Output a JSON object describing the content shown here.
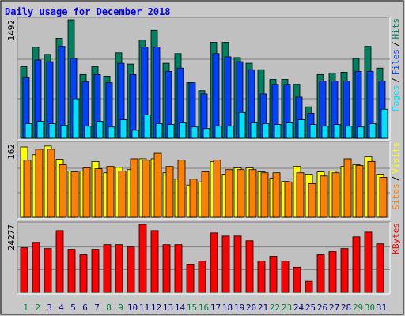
{
  "title": "Daily usage for December 2018",
  "legend_separator": "/",
  "chart_data": [
    {
      "type": "bar",
      "ylim": [
        0,
        1492
      ],
      "yticks": [
        1492
      ],
      "series": [
        {
          "name": "Hits",
          "color": "#008060",
          "values": [
            903,
            1147,
            1056,
            1259,
            1492,
            802,
            903,
            782,
            1076,
            934,
            1238,
            1360,
            944,
            1066,
            700,
            599,
            1208,
            1208,
            1015,
            944,
            863,
            741,
            741,
            680,
            396,
            802,
            822,
            832,
            1005,
            1157,
            883
          ]
        },
        {
          "name": "Files",
          "color": "#0040ff",
          "values": [
            761,
            985,
            964,
            1157,
            1005,
            710,
            802,
            700,
            944,
            802,
            1147,
            1147,
            842,
            883,
            700,
            558,
            1066,
            1025,
            964,
            863,
            558,
            680,
            680,
            518,
            315,
            721,
            721,
            721,
            842,
            842,
            721
          ]
        },
        {
          "name": "Pages",
          "color": "#00e0ff",
          "values": [
            183,
            213,
            183,
            162,
            497,
            152,
            213,
            142,
            233,
            101,
            294,
            183,
            173,
            193,
            142,
            122,
            152,
            152,
            325,
            193,
            183,
            173,
            193,
            233,
            173,
            152,
            173,
            152,
            142,
            183,
            365
          ]
        }
      ]
    },
    {
      "type": "bar",
      "ylim": [
        0,
        162
      ],
      "yticks": [
        162
      ],
      "series": [
        {
          "name": "Visits",
          "color": "#ffff00",
          "values": [
            155,
            138,
            157,
            128,
            102,
            102,
            123,
            98,
            110,
            105,
            129,
            129,
            98,
            84,
            71,
            78,
            123,
            95,
            109,
            109,
            100,
            86,
            79,
            112,
            95,
            100,
            102,
            112,
            116,
            133,
            95
          ]
        },
        {
          "name": "Sites",
          "color": "#ff8000",
          "values": [
            126,
            150,
            150,
            116,
            100,
            109,
            107,
            112,
            102,
            129,
            126,
            141,
            112,
            126,
            84,
            100,
            126,
            105,
            105,
            105,
            98,
            98,
            78,
            98,
            74,
            91,
            98,
            129,
            114,
            123,
            88
          ]
        }
      ]
    },
    {
      "type": "bar",
      "ylim": [
        0,
        24277
      ],
      "yticks": [
        24277
      ],
      "categories": [
        "1",
        "2",
        "3",
        "4",
        "5",
        "6",
        "7",
        "8",
        "9",
        "10",
        "11",
        "12",
        "13",
        "14",
        "15",
        "16",
        "17",
        "18",
        "19",
        "20",
        "21",
        "22",
        "23",
        "24",
        "25",
        "26",
        "27",
        "28",
        "29",
        "30",
        "31"
      ],
      "category_colors": [
        "#008040",
        "#008040",
        "#000080",
        "#000080",
        "#000080",
        "#000080",
        "#000080",
        "#008040",
        "#008040",
        "#000080",
        "#000080",
        "#000080",
        "#000080",
        "#000080",
        "#008040",
        "#008040",
        "#000080",
        "#000080",
        "#000080",
        "#000080",
        "#000080",
        "#008040",
        "#008040",
        "#000080",
        "#000080",
        "#000080",
        "#000080",
        "#000080",
        "#008040",
        "#008040",
        "#000080"
      ],
      "series": [
        {
          "name": "KBytes",
          "color": "#ff0000",
          "values": [
            15908,
            17861,
            15630,
            22047,
            15351,
            13398,
            15351,
            17024,
            17024,
            16187,
            24277,
            22047,
            17024,
            17024,
            10050,
            11166,
            21210,
            20094,
            20094,
            18420,
            11166,
            12840,
            11166,
            8934,
            3907,
            13398,
            14514,
            15630,
            19815,
            21489,
            17303
          ]
        }
      ]
    }
  ]
}
